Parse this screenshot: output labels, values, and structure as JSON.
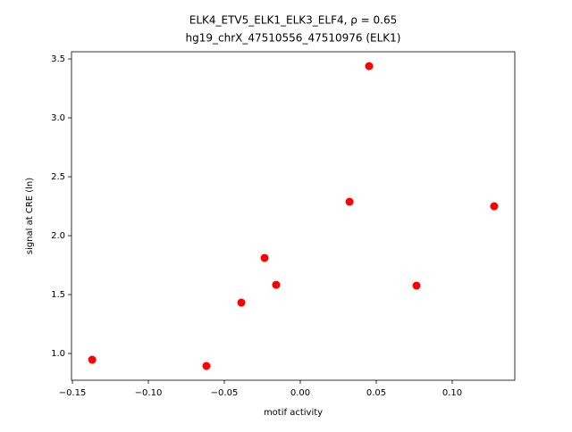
{
  "chart_data": {
    "type": "scatter",
    "title": "ELK4_ETV5_ELK1_ELK3_ELF4, ρ = 0.65",
    "subtitle": "hg19_chrX_47510556_47510976 (ELK1)",
    "xlabel": "motif activity",
    "ylabel": "signal at CRE (ln)",
    "color": "#ff0000",
    "series": [
      {
        "x": [
          -0.137,
          -0.0618,
          -0.0388,
          -0.0235,
          -0.0159,
          0.0324,
          0.0453,
          0.0765,
          0.1276
        ],
        "values": [
          0.947,
          0.894,
          1.432,
          1.811,
          1.583,
          2.288,
          3.439,
          1.576,
          2.25
        ]
      }
    ],
    "xlim": [
      -0.1506,
      0.1412
    ],
    "ylim": [
      0.773,
      3.561
    ],
    "xticks": [
      {
        "value": -0.15,
        "label": "−0.15"
      },
      {
        "value": -0.1,
        "label": "−0.10"
      },
      {
        "value": -0.05,
        "label": "−0.05"
      },
      {
        "value": 0,
        "label": "0.00"
      },
      0.05,
      {
        "value": 0.1,
        "label": "0.10"
      }
    ],
    "yticks": [
      {
        "value": 1,
        "label": "1.0"
      },
      1.5,
      {
        "value": 2,
        "label": "2.0"
      },
      2.5,
      {
        "value": 3,
        "label": "3.0"
      },
      3.5
    ],
    "grid": false
  }
}
